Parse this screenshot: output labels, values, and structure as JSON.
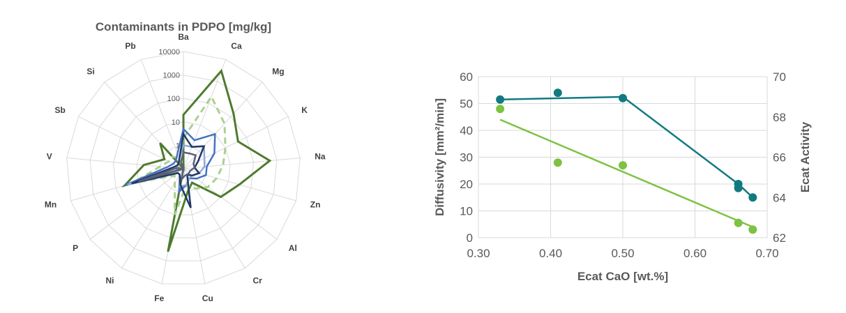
{
  "chart_data": [
    {
      "type": "radar",
      "title": "Contaminants in PDPO [mg/kg]",
      "scale": "log",
      "rlim": [
        0.1,
        10000
      ],
      "ring_values": [
        0.1,
        1,
        10,
        100,
        1000,
        10000
      ],
      "ring_labels": [
        "0",
        "1",
        "10",
        "100",
        "1000",
        "10000"
      ],
      "grid": true,
      "categories": [
        "Ba",
        "Ca",
        "Mg",
        "K",
        "Na",
        "Zn",
        "Al",
        "Cr",
        "Cu",
        "Fe",
        "Ni",
        "P",
        "Mn",
        "V",
        "Sb",
        "Si",
        "Pb"
      ],
      "series": [
        {
          "color": "#4e7a2e",
          "dash": "solid",
          "width": 3,
          "values": [
            20,
            3000,
            150,
            40,
            500,
            30,
            10,
            0.5,
            1,
            400,
            0.1,
            0.1,
            40,
            5,
            0.8,
            3,
            0.1
          ]
        },
        {
          "color": "#a9d18e",
          "dash": "dashed",
          "width": 3,
          "values": [
            2,
            200,
            40,
            10,
            5,
            3,
            2,
            1,
            0.5,
            10,
            0.5,
            0.3,
            20,
            1,
            0.5,
            0.5,
            0.3
          ]
        },
        {
          "color": "#4472c4",
          "dash": "solid",
          "width": 2.5,
          "values": [
            5,
            2,
            10,
            3,
            1,
            1,
            0.5,
            0.3,
            0.5,
            1,
            0.2,
            0.2,
            40,
            0.5,
            0.3,
            0.3,
            0.5
          ]
        },
        {
          "color": "#8faadc",
          "dash": "solid",
          "width": 2.5,
          "values": [
            1,
            1,
            2,
            1,
            0.8,
            0.5,
            0.3,
            0.3,
            0.5,
            0.6,
            0.2,
            0.2,
            30,
            0.2,
            0.2,
            0.2,
            0.3
          ]
        },
        {
          "color": "#203864",
          "dash": "solid",
          "width": 2.5,
          "values": [
            3,
            1,
            2,
            0.5,
            0.3,
            0.5,
            0.3,
            0.2,
            5,
            0.5,
            0.2,
            0.2,
            20,
            0.3,
            0.2,
            0.2,
            0.3
          ]
        },
        {
          "color": "#5a5e7a",
          "dash": "solid",
          "width": 2.5,
          "values": [
            0.5,
            0.5,
            0.6,
            0.3,
            0.3,
            0.2,
            0.2,
            0.2,
            0.2,
            0.3,
            0.1,
            0.1,
            10,
            0.2,
            0.1,
            0.1,
            0.2
          ]
        }
      ]
    },
    {
      "type": "scatter",
      "xlabel": "Ecat CaO [wt.%]",
      "ylabel": "Diffusivity [mm²/min]",
      "y2label": "Ecat Activity",
      "xlim": [
        0.3,
        0.7
      ],
      "xticks": [
        0.3,
        0.4,
        0.5,
        0.6,
        0.7
      ],
      "xtick_labels": [
        "0.30",
        "0.40",
        "0.50",
        "0.60",
        "0.70"
      ],
      "ylim": [
        0,
        60
      ],
      "yticks": [
        0,
        10,
        20,
        30,
        40,
        50,
        60
      ],
      "y2lim": [
        62,
        70
      ],
      "y2ticks": [
        62,
        64,
        66,
        68,
        70
      ],
      "grid": true,
      "series": [
        {
          "axis": "left",
          "color": "#117a80",
          "x": [
            0.33,
            0.41,
            0.5,
            0.66,
            0.66,
            0.68
          ],
          "y": [
            51.5,
            54,
            52,
            20,
            18.5,
            15
          ],
          "line_x": [
            0.33,
            0.5,
            0.66,
            0.68
          ],
          "line_y": [
            51.5,
            52.5,
            20,
            15
          ]
        },
        {
          "axis": "left",
          "color": "#7dc242",
          "x": [
            0.33,
            0.41,
            0.5,
            0.66,
            0.68
          ],
          "y": [
            48,
            28,
            27,
            5.5,
            3
          ],
          "line_x": [
            0.33,
            0.68
          ],
          "line_y": [
            44,
            4
          ]
        }
      ]
    }
  ]
}
